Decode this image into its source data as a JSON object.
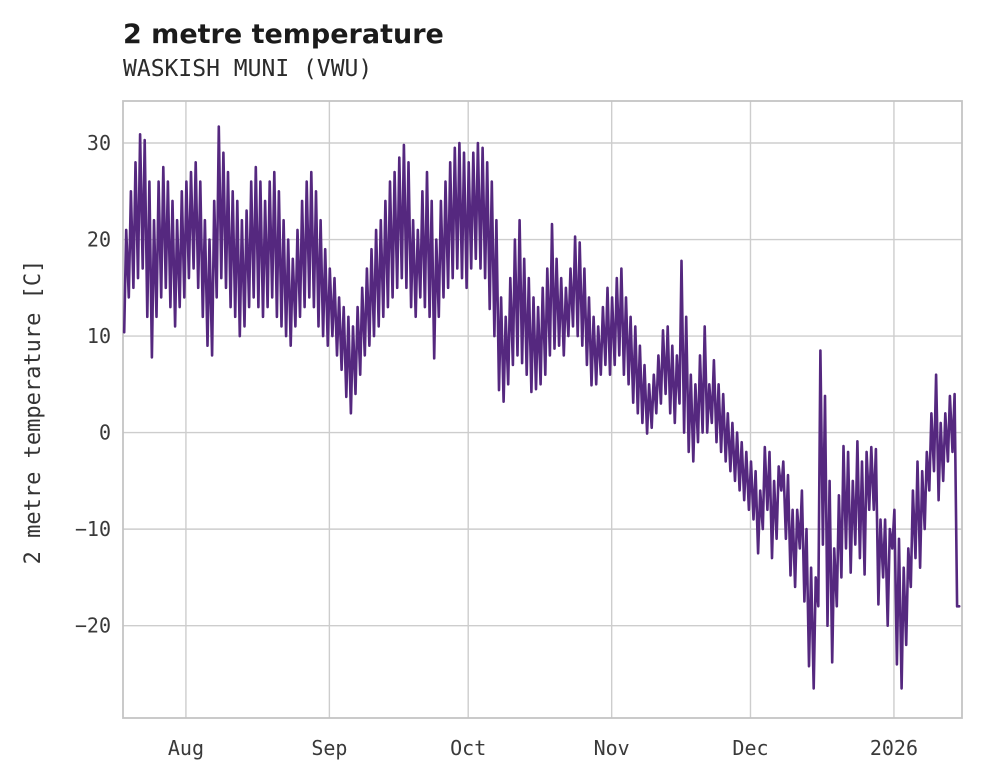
{
  "header": {
    "title": "2 metre temperature",
    "subtitle": "WASKISH MUNI (VWU)"
  },
  "chart_data": {
    "type": "line",
    "title": "2 metre temperature",
    "subtitle": "WASKISH MUNI (VWU)",
    "xlabel": "",
    "ylabel": "2 metre temperature [C]",
    "legend": "none",
    "grid": true,
    "grid_color": "#cdcdcd",
    "border_color": "#c4c4c4",
    "line_color": "#55287f",
    "background": "#ffffff",
    "ylim": [
      -29.6,
      34.3
    ],
    "yticks": [
      30,
      20,
      10,
      0,
      -10,
      -20
    ],
    "x_ticks": [
      {
        "label": "Aug",
        "day": 13.6
      },
      {
        "label": "Sep",
        "day": 44.6
      },
      {
        "label": "Oct",
        "day": 74.6
      },
      {
        "label": "Nov",
        "day": 105.6
      },
      {
        "label": "Dec",
        "day": 135.6
      },
      {
        "label": "2026",
        "day": 166.6
      }
    ],
    "x_units": "days from start of trace (mid-July) to mid-January; ~181 days total",
    "series": [
      {
        "name": "2 metre temperature [C]",
        "sampling": "approx daily min/max envelope of hourly trace",
        "daily_min": [
          10.4,
          14,
          15,
          16,
          17,
          12,
          7.8,
          12,
          14,
          15,
          13,
          11,
          13,
          14,
          16,
          17,
          15,
          12,
          9,
          8,
          14,
          16,
          15,
          13,
          12,
          10,
          11,
          13,
          14,
          13,
          12,
          13,
          14,
          12,
          11,
          10,
          9,
          11,
          12,
          13,
          14,
          13,
          11,
          10,
          9,
          10,
          8,
          6.5,
          3.7,
          2,
          4,
          6,
          8,
          9,
          10,
          11,
          12,
          13,
          14,
          15,
          16,
          15,
          13,
          12,
          14,
          13,
          12,
          7.7,
          12,
          14,
          15,
          16,
          17,
          16,
          15,
          17,
          18,
          17,
          16,
          12.8,
          10,
          4.4,
          3.2,
          5,
          7,
          8,
          7.2,
          6,
          4.2,
          4.5,
          5,
          6,
          8,
          8.7,
          9,
          8,
          10,
          11,
          10,
          9,
          7,
          4.9,
          5,
          6,
          7,
          6,
          7,
          8,
          6,
          5,
          3.1,
          2,
          1,
          -0.1,
          0.5,
          2,
          3,
          4,
          2,
          1,
          3,
          0,
          -2,
          -3,
          -1,
          0,
          0,
          1,
          -1,
          -2,
          -3,
          -4,
          -5,
          -6,
          -7,
          -8,
          -9,
          -12.5,
          -10,
          -8,
          -13,
          -11,
          -6,
          -11,
          -14.8,
          -16,
          -12,
          -17.5,
          -24.2,
          -26.5,
          -18,
          -11.6,
          -20,
          -23.8,
          -18,
          -15,
          -12,
          -14.5,
          -11.6,
          -13,
          -14.7,
          -8,
          -8,
          -17.8,
          -15,
          -20,
          -12,
          -24,
          -26.5,
          -22,
          -16,
          -13,
          -14,
          -10,
          -6,
          -4,
          -7,
          -5,
          -3,
          -2,
          -18
        ],
        "daily_max": [
          21,
          25,
          28,
          30.9,
          30.3,
          26,
          22,
          26,
          27.5,
          26,
          24,
          22,
          25,
          26,
          27,
          28,
          26,
          22,
          20,
          24,
          31.7,
          29,
          27,
          25,
          24,
          22,
          23,
          26,
          27.5,
          26,
          24,
          26,
          27,
          25,
          22,
          20,
          18,
          21,
          24,
          26,
          27,
          25,
          22,
          19,
          17,
          16,
          14,
          13,
          12,
          11,
          13,
          15,
          17,
          19,
          21,
          22,
          24,
          26,
          27,
          28.5,
          29.8,
          28,
          22,
          21,
          25,
          27,
          24,
          20,
          24,
          26,
          28,
          29.5,
          30,
          29,
          28,
          29,
          30,
          29.5,
          28,
          26,
          22,
          14,
          12,
          16,
          20,
          22,
          18,
          16,
          14,
          13,
          15,
          17,
          21.6,
          18,
          16,
          15,
          17,
          20.3,
          19.7,
          17,
          14,
          12,
          11,
          13,
          15,
          14,
          16,
          17,
          14,
          12,
          11,
          9,
          7,
          5,
          6,
          8,
          10.6,
          11,
          9,
          8,
          17.8,
          12,
          6,
          5,
          8,
          11,
          5,
          7.5,
          5,
          4,
          2,
          1,
          0,
          -1,
          -2,
          -3,
          -4,
          -6,
          -1.5,
          -2,
          -5,
          -3.5,
          -3,
          -4.4,
          -8,
          -8,
          -6,
          -10,
          -14,
          -15,
          8.5,
          3.8,
          -5,
          -12,
          -6.5,
          -1.4,
          -2,
          -5,
          -0.9,
          -3,
          -2,
          -1.5,
          -1.7,
          -9,
          -9,
          -10,
          -8,
          -11,
          -14,
          -12,
          -6,
          -3,
          -4,
          -2,
          2,
          6,
          1,
          2,
          3.8,
          4,
          -18
        ]
      }
    ]
  }
}
